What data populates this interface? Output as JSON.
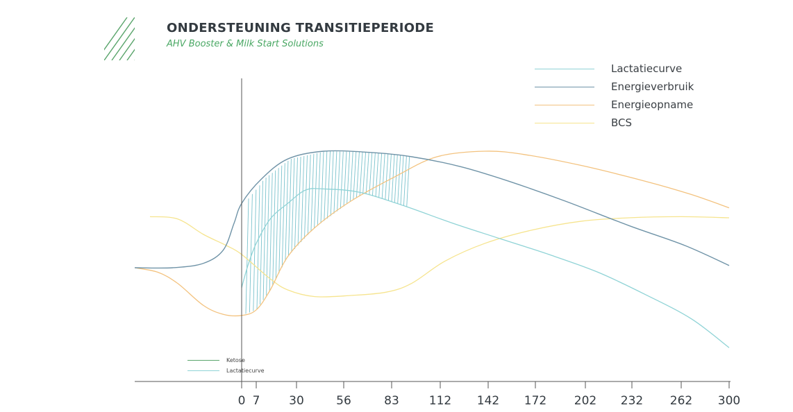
{
  "header": {
    "title": "ONDERSTEUNING TRANSITIEPERIODE",
    "subtitle": "AHV Booster & Milk Start Solutions"
  },
  "colors": {
    "lactatiecurve": "#8fd3d6",
    "energieverbruik": "#6f93a7",
    "energieopname": "#f3c27e",
    "bcs": "#f6e48e",
    "ketose": "#5aa56c",
    "hatch": "#7ac2cc",
    "axis": "#555555",
    "logo": "#5aa56c"
  },
  "legend": [
    {
      "label": "Lactatiecurve",
      "color_key": "lactatiecurve"
    },
    {
      "label": "Energieverbruik",
      "color_key": "energieverbruik"
    },
    {
      "label": "Energieopname",
      "color_key": "energieopname"
    },
    {
      "label": "BCS",
      "color_key": "bcs"
    }
  ],
  "mini_legend": [
    {
      "label": "Ketose",
      "color_key": "ketose"
    },
    {
      "label": "Lactatiecurve",
      "color_key": "lactatiecurve"
    }
  ],
  "chart_data": {
    "type": "line",
    "title": "",
    "xlabel": "",
    "ylabel": "",
    "x_ticks": [
      0,
      7,
      30,
      56,
      83,
      112,
      142,
      172,
      202,
      232,
      262,
      300
    ],
    "xlim": [
      -70,
      300
    ],
    "ylim": [
      0,
      100
    ],
    "grid": false,
    "legend_position": "top-right",
    "series": [
      {
        "name": "Energieverbruik",
        "color_key": "energieverbruik",
        "points": [
          [
            -70,
            45
          ],
          [
            -45,
            45
          ],
          [
            -25,
            47
          ],
          [
            -12,
            53
          ],
          [
            -5,
            65
          ],
          [
            0,
            74
          ],
          [
            10,
            85
          ],
          [
            25,
            94
          ],
          [
            45,
            97.5
          ],
          [
            70,
            97
          ],
          [
            95,
            95
          ],
          [
            125,
            90.5
          ],
          [
            155,
            84
          ],
          [
            190,
            75
          ],
          [
            230,
            64
          ],
          [
            265,
            55
          ],
          [
            300,
            46
          ]
        ]
      },
      {
        "name": "Lactatiecurve",
        "color_key": "lactatiecurve",
        "points": [
          [
            0,
            36
          ],
          [
            3,
            46
          ],
          [
            7,
            56
          ],
          [
            15,
            67
          ],
          [
            25,
            74
          ],
          [
            35,
            80
          ],
          [
            45,
            80.5
          ],
          [
            65,
            79
          ],
          [
            90,
            73
          ],
          [
            120,
            65
          ],
          [
            150,
            58
          ],
          [
            180,
            51
          ],
          [
            210,
            43
          ],
          [
            240,
            33
          ],
          [
            270,
            22
          ],
          [
            300,
            9
          ]
        ]
      },
      {
        "name": "Energieopname",
        "color_key": "energieopname",
        "points": [
          [
            -70,
            45
          ],
          [
            -55,
            43
          ],
          [
            -42,
            38
          ],
          [
            -25,
            28
          ],
          [
            -12,
            24
          ],
          [
            0,
            23.5
          ],
          [
            7,
            26
          ],
          [
            15,
            35
          ],
          [
            25,
            50
          ],
          [
            40,
            63
          ],
          [
            60,
            75
          ],
          [
            85,
            86
          ],
          [
            110,
            95
          ],
          [
            140,
            97.5
          ],
          [
            165,
            96
          ],
          [
            200,
            91
          ],
          [
            240,
            84
          ],
          [
            270,
            78
          ],
          [
            300,
            72
          ]
        ]
      },
      {
        "name": "BCS",
        "color_key": "bcs",
        "points": [
          [
            -60,
            68
          ],
          [
            -42,
            67
          ],
          [
            -25,
            60
          ],
          [
            -10,
            55
          ],
          [
            0,
            51
          ],
          [
            15,
            40
          ],
          [
            25,
            35
          ],
          [
            40,
            32
          ],
          [
            60,
            32.5
          ],
          [
            80,
            34
          ],
          [
            95,
            38
          ],
          [
            115,
            48
          ],
          [
            140,
            56
          ],
          [
            170,
            62
          ],
          [
            200,
            66
          ],
          [
            230,
            67.5
          ],
          [
            262,
            68
          ],
          [
            300,
            67.5
          ]
        ]
      }
    ]
  }
}
